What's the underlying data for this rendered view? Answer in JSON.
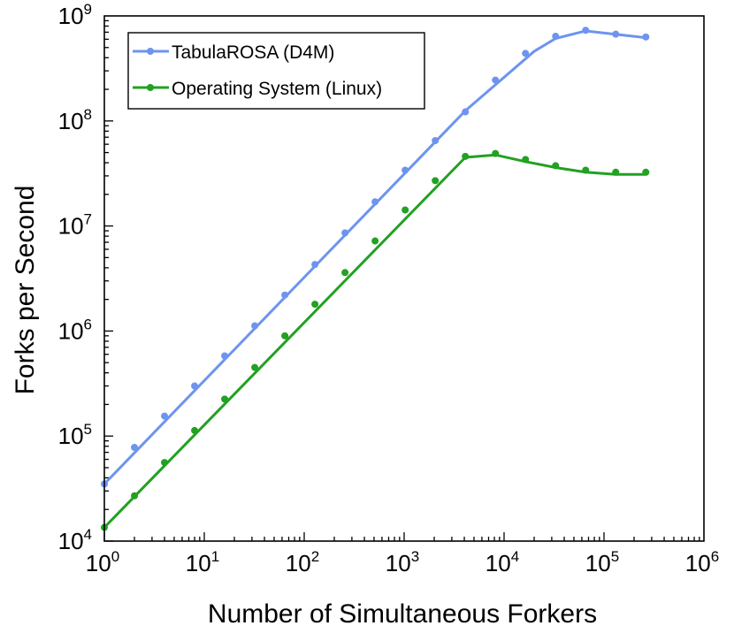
{
  "chart_data": {
    "type": "line",
    "xlabel": "Number of Simultaneous Forkers",
    "ylabel": "Forks per Second",
    "x_scale": "log",
    "y_scale": "log",
    "xlim": [
      1,
      1000000
    ],
    "ylim": [
      10000,
      1000000000
    ],
    "x_ticks": [
      {
        "base": "10",
        "exp": "0",
        "value": 1
      },
      {
        "base": "10",
        "exp": "1",
        "value": 10
      },
      {
        "base": "10",
        "exp": "2",
        "value": 100
      },
      {
        "base": "10",
        "exp": "3",
        "value": 1000
      },
      {
        "base": "10",
        "exp": "4",
        "value": 10000
      },
      {
        "base": "10",
        "exp": "5",
        "value": 100000
      },
      {
        "base": "10",
        "exp": "6",
        "value": 1000000
      }
    ],
    "y_ticks": [
      {
        "base": "10",
        "exp": "4",
        "value": 10000
      },
      {
        "base": "10",
        "exp": "5",
        "value": 100000
      },
      {
        "base": "10",
        "exp": "6",
        "value": 1000000
      },
      {
        "base": "10",
        "exp": "7",
        "value": 10000000
      },
      {
        "base": "10",
        "exp": "8",
        "value": 100000000
      },
      {
        "base": "10",
        "exp": "9",
        "value": 1000000000
      }
    ],
    "grid": false,
    "legend_position": "top-left",
    "series": [
      {
        "name": "TabulaROSA (D4M)",
        "color": "#6d94ee",
        "x": [
          1,
          2,
          4,
          8,
          16,
          32,
          64,
          128,
          256,
          512,
          1024,
          2048,
          4096,
          8192,
          16384,
          32768,
          65536,
          131072,
          262144
        ],
        "y": [
          35000,
          78000,
          155000,
          300000,
          580000,
          1120000,
          2200000,
          4300000,
          8600000,
          17000000,
          34000000,
          65000000,
          122000000,
          245000000,
          440000000,
          640000000,
          730000000,
          670000000,
          630000000
        ],
        "fit": [
          [
            1,
            35000
          ],
          [
            4096,
            125000000
          ],
          [
            20000,
            460000000
          ],
          [
            32768,
            610000000
          ],
          [
            65536,
            720000000
          ],
          [
            262144,
            620000000
          ]
        ]
      },
      {
        "name": "Operating System (Linux)",
        "color": "#22a122",
        "x": [
          1,
          2,
          4,
          8,
          16,
          32,
          64,
          128,
          256,
          512,
          1024,
          2048,
          4096,
          8192,
          16384,
          32768,
          65536,
          131072,
          262144
        ],
        "y": [
          13500,
          27000,
          56000,
          113000,
          225000,
          450000,
          900000,
          1800000,
          3600000,
          7200000,
          14200000,
          27000000,
          46000000,
          49000000,
          43000000,
          37500000,
          34000000,
          32500000,
          32500000
        ],
        "fit": [
          [
            1,
            13500
          ],
          [
            4096,
            45000000
          ],
          [
            8192,
            47500000
          ],
          [
            16384,
            41000000
          ],
          [
            32768,
            36000000
          ],
          [
            65536,
            32500000
          ],
          [
            131072,
            31000000
          ],
          [
            262144,
            31000000
          ]
        ]
      }
    ]
  }
}
